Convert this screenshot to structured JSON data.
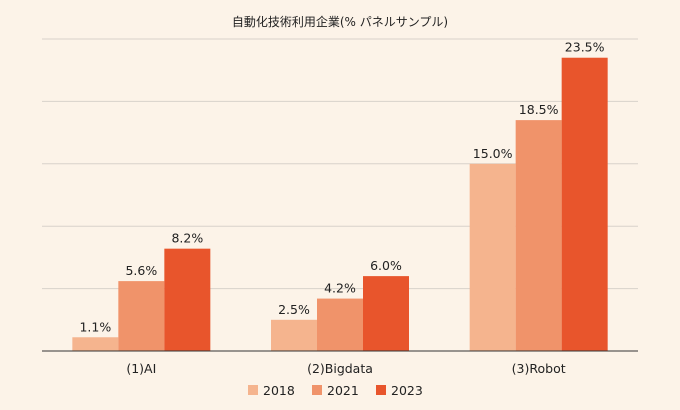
{
  "chart_data": {
    "type": "bar",
    "title": "自動化技術利用企業(% パネルサンプル)",
    "categories": [
      "(1)AI",
      "(2)Bigdata",
      "(3)Robot"
    ],
    "series": [
      {
        "name": "2018",
        "values": [
          1.1,
          2.5,
          15.0
        ],
        "labels": [
          "1.1%",
          "2.5%",
          "15.0%"
        ],
        "color": "#f5b48e"
      },
      {
        "name": "2021",
        "values": [
          5.6,
          4.2,
          18.5
        ],
        "labels": [
          "5.6%",
          "4.2%",
          "18.5%"
        ],
        "color": "#f0936a"
      },
      {
        "name": "2023",
        "values": [
          8.2,
          6.0,
          23.5
        ],
        "labels": [
          "8.2%",
          "6.0%",
          "23.5%"
        ],
        "color": "#e8552c"
      }
    ],
    "ylim": [
      0,
      25
    ],
    "yticks": [
      0,
      5,
      10,
      15,
      20,
      25
    ],
    "ytick_labels_visible": false,
    "grid": true,
    "legend_position": "bottom",
    "background": "#fcf3e8"
  }
}
